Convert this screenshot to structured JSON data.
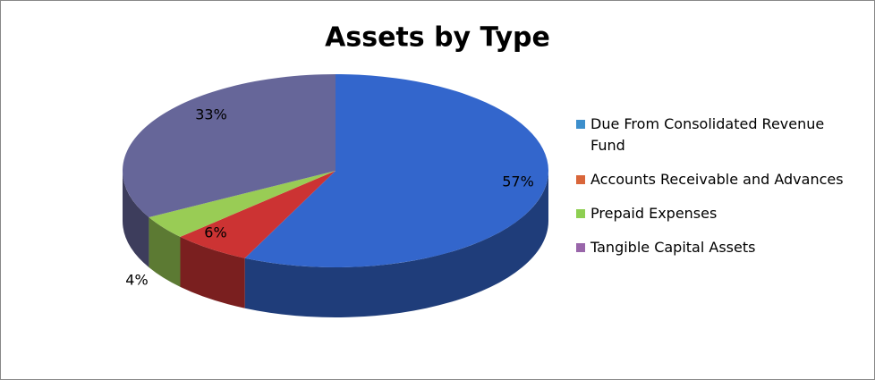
{
  "chart_data": {
    "type": "pie",
    "title": "Assets by Type",
    "categories": [
      "Due From Consolidated Revenue Fund",
      "Accounts Receivable and Advances",
      "Prepaid Expenses",
      "Tangible Capital Assets"
    ],
    "values": [
      57,
      6,
      4,
      33
    ],
    "value_labels": [
      "57%",
      "6%",
      "4%",
      "33%"
    ],
    "colors": [
      "#3366cc",
      "#cc3333",
      "#99cc55",
      "#666699"
    ],
    "legend_colors": [
      "#3d8fcc",
      "#d9663a",
      "#8ecf52",
      "#9966aa"
    ],
    "legend": "right"
  }
}
